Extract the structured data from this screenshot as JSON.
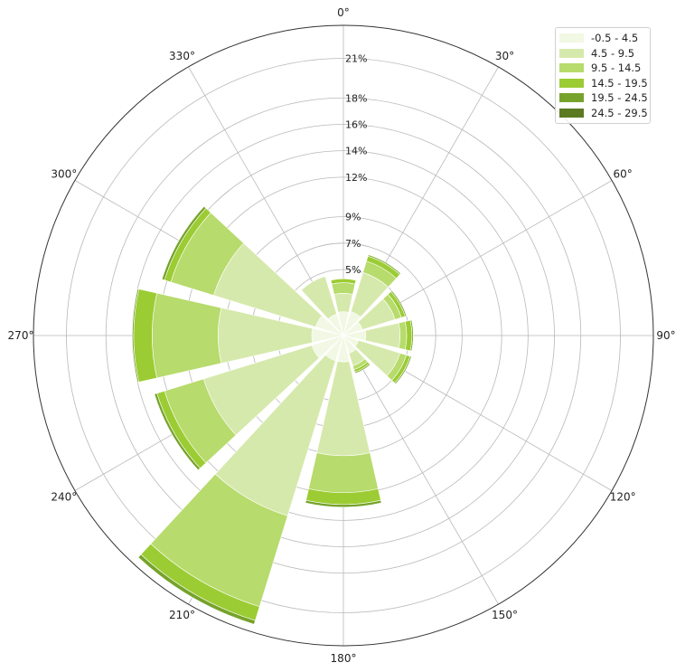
{
  "chart_data": {
    "type": "windrose",
    "directions": [
      0,
      30,
      60,
      90,
      120,
      150,
      180,
      210,
      240,
      270,
      300,
      330
    ],
    "radial_ticks": [
      "5%",
      "7%",
      "9%",
      "12%",
      "14%",
      "16%",
      "18%",
      "21%"
    ],
    "angle_ticks": [
      "0°",
      "30°",
      "60°",
      "90°",
      "120°",
      "150°",
      "180°",
      "210°",
      "240°",
      "270°",
      "300°",
      "330°"
    ],
    "radial_max": 23.5,
    "legend_position": "top-right",
    "series": [
      {
        "name": "-0.5 - 4.5",
        "color": "#f1f8e3",
        "values": [
          1.8,
          1.9,
          1.5,
          1.7,
          1.2,
          1.4,
          2.0,
          2.0,
          2.5,
          2.4,
          2.2,
          1.7
        ]
      },
      {
        "name": "4.5 - 9.5",
        "color": "#d6e9ac",
        "values": [
          1.4,
          3.1,
          2.6,
          2.6,
          3.3,
          1.0,
          7.1,
          12.3,
          8.6,
          7.1,
          8.1,
          3.0
        ]
      },
      {
        "name": "9.5 - 14.5",
        "color": "#b7db6c",
        "values": [
          0.8,
          0.9,
          0.5,
          0.5,
          0.5,
          0.3,
          2.8,
          7.2,
          3.1,
          5.0,
          3.4,
          0.0
        ]
      },
      {
        "name": "14.5 - 19.5",
        "color": "#9ccc33",
        "values": [
          0.3,
          0.4,
          0.3,
          0.4,
          0.3,
          0.2,
          0.9,
          1.1,
          0.6,
          1.4,
          0.5,
          0.0
        ]
      },
      {
        "name": "19.5 - 24.5",
        "color": "#76a32b",
        "values": [
          0.0,
          0.1,
          0.1,
          0.1,
          0.1,
          0.1,
          0.2,
          0.3,
          0.2,
          0.1,
          0.2,
          0.0
        ]
      },
      {
        "name": "24.5 - 29.5",
        "color": "#5b7a22",
        "values": [
          0.0,
          0.0,
          0.0,
          0.0,
          0.0,
          0.0,
          0.0,
          0.0,
          0.0,
          0.0,
          0.0,
          0.0
        ]
      }
    ]
  }
}
